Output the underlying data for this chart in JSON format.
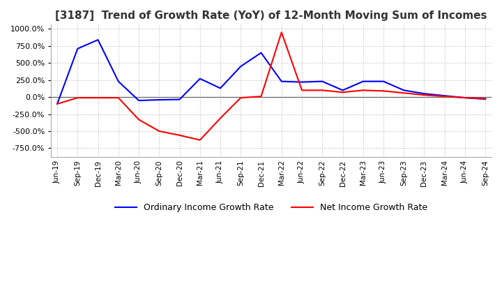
{
  "title": "[3187]  Trend of Growth Rate (YoY) of 12-Month Moving Sum of Incomes",
  "title_fontsize": 11,
  "ylim": [
    -875,
    1062.5
  ],
  "yticks": [
    -750,
    -500,
    -250,
    0,
    250,
    500,
    750,
    1000
  ],
  "background_color": "#ffffff",
  "plot_bg_color": "#ffffff",
  "grid_color": "#bbbbbb",
  "ordinary_color": "#0000ff",
  "net_color": "#ff0000",
  "legend_ordinary": "Ordinary Income Growth Rate",
  "legend_net": "Net Income Growth Rate",
  "x_labels": [
    "Jun-19",
    "Sep-19",
    "Dec-19",
    "Mar-20",
    "Jun-20",
    "Sep-20",
    "Dec-20",
    "Mar-21",
    "Jun-21",
    "Sep-21",
    "Dec-21",
    "Mar-22",
    "Jun-22",
    "Sep-22",
    "Dec-22",
    "Mar-23",
    "Jun-23",
    "Sep-23",
    "Dec-23",
    "Mar-24",
    "Jun-24",
    "Sep-24"
  ],
  "ordinary_income": [
    -100,
    710,
    840,
    230,
    -50,
    -40,
    -35,
    270,
    130,
    450,
    650,
    230,
    220,
    230,
    100,
    230,
    230,
    100,
    50,
    20,
    -10,
    -30
  ],
  "net_income": [
    -100,
    -10,
    -10,
    -10,
    -330,
    -500,
    -560,
    -630,
    -310,
    -10,
    10,
    950,
    100,
    100,
    70,
    100,
    90,
    60,
    30,
    10,
    -10,
    -20
  ]
}
